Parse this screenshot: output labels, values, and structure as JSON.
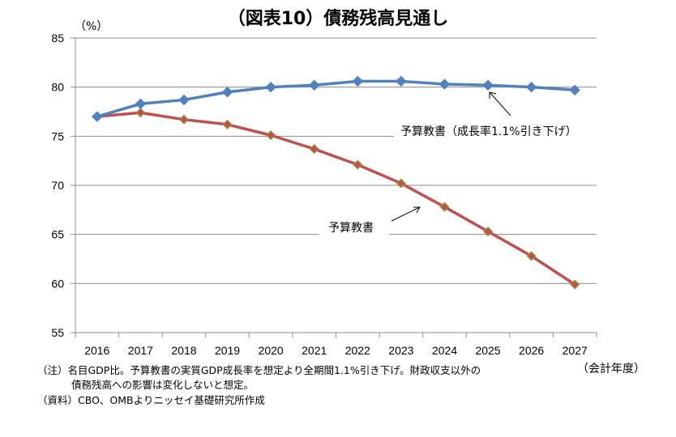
{
  "chart_data": {
    "type": "line",
    "title": "（図表10）債務残高見通し",
    "ylabel": "（%）",
    "xlabel": "（会計年度）",
    "ylim": [
      55,
      85
    ],
    "yticks": [
      55,
      60,
      65,
      70,
      75,
      80,
      85
    ],
    "grid": true,
    "categories": [
      "2016",
      "2017",
      "2018",
      "2019",
      "2020",
      "2021",
      "2022",
      "2023",
      "2024",
      "2025",
      "2026",
      "2027"
    ],
    "series": [
      {
        "name": "予算教書（成長率1.1%引き下げ）",
        "color": "#4F81BD",
        "marker": "diamond",
        "values": [
          77.0,
          78.3,
          78.7,
          79.5,
          80.0,
          80.2,
          80.6,
          80.6,
          80.3,
          80.2,
          80.0,
          79.7
        ]
      },
      {
        "name": "予算教書",
        "color": "#C0504D",
        "marker_edge": "#9B8B3A",
        "marker": "diamond",
        "values": [
          77.0,
          77.4,
          76.7,
          76.2,
          75.1,
          73.7,
          72.1,
          70.2,
          67.8,
          65.3,
          62.8,
          59.9
        ]
      }
    ],
    "annotations": [
      {
        "text": "予算教書（成長率1.1%引き下げ）",
        "points_to": "予算教書（成長率1.1%引き下げ）"
      },
      {
        "text": "予算教書",
        "points_to": "予算教書"
      }
    ]
  },
  "notes": {
    "line1": "（注）名目GDP比。予算教書の実質GDP成長率を想定より全期間1.1%引き下げ。財政収支以外の",
    "line2": "債務残高への影響は変化しないと想定。",
    "line3": "（資料）CBO、OMBよりニッセイ基礎研究所作成"
  }
}
